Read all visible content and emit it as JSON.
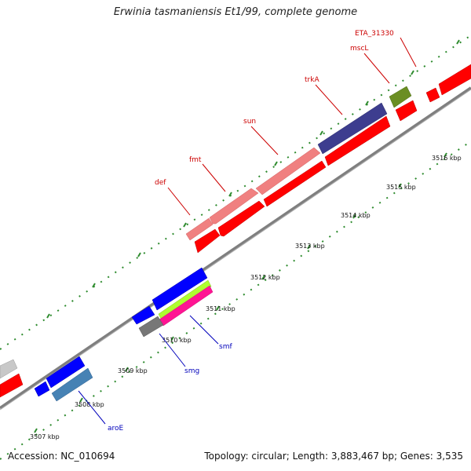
{
  "title": "Erwinia tasmaniensis Et1/99, complete genome",
  "footer": {
    "accession": "Accession: NC_010694",
    "summary": "Topology: circular; Length: 3,883,467 bp; Genes: 3,535"
  },
  "colors": {
    "backbone": "#7f7f7f",
    "tick": "#2e8b2e",
    "forward_red": "#ff0000",
    "pink": "#f08080",
    "purple": "#3d3d8f",
    "olive": "#6b8e23",
    "blue": "#0000ff",
    "steelblue": "#4682b4",
    "lime": "#adff2f",
    "magenta": "#ff1493",
    "gray": "#777777",
    "light_gray": "#c8c8c8",
    "label_red": "#cc0000",
    "label_blue": "#0000bb"
  },
  "ticks": [
    {
      "label": "3507 kbp"
    },
    {
      "label": "3508 kbp"
    },
    {
      "label": "3509 kbp"
    },
    {
      "label": "3510 kbp"
    },
    {
      "label": "3511 kbp"
    },
    {
      "label": "3512 kbp"
    },
    {
      "label": "3513 kbp"
    },
    {
      "label": "3514 kbp"
    },
    {
      "label": "3515 kbp"
    },
    {
      "label": "3516 kbp"
    }
  ],
  "gene_labels": {
    "def": "def",
    "fmt": "fmt",
    "sun": "sun",
    "trkA": "trkA",
    "mscL": "mscL",
    "ETA_31330": "ETA_31330",
    "smf": "smf",
    "smg": "smg",
    "aroE": "aroE"
  }
}
